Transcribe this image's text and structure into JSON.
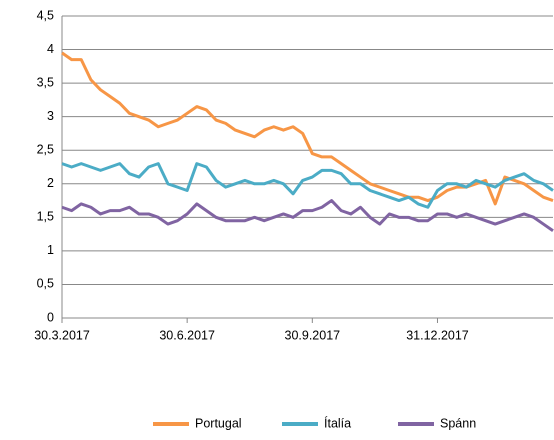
{
  "chart_data": {
    "type": "line",
    "categories": [
      "30.3.2017",
      null,
      null,
      null,
      null,
      null,
      null,
      null,
      null,
      null,
      null,
      null,
      null,
      "30.6.2017",
      null,
      null,
      null,
      null,
      null,
      null,
      null,
      null,
      null,
      null,
      null,
      null,
      "30.9.2017",
      null,
      null,
      null,
      null,
      null,
      null,
      null,
      null,
      null,
      null,
      null,
      null,
      "31.12.2017",
      null,
      null,
      null,
      null,
      null,
      null,
      null,
      null,
      null,
      null,
      null,
      null
    ],
    "series": [
      {
        "name": "Portugal",
        "color": "#f79646",
        "values": [
          3.95,
          3.85,
          3.85,
          3.55,
          3.4,
          3.3,
          3.2,
          3.05,
          3.0,
          2.95,
          2.85,
          2.9,
          2.95,
          3.05,
          3.15,
          3.1,
          2.95,
          2.9,
          2.8,
          2.75,
          2.7,
          2.8,
          2.85,
          2.8,
          2.85,
          2.75,
          2.45,
          2.4,
          2.4,
          2.3,
          2.2,
          2.1,
          2.0,
          1.95,
          1.9,
          1.85,
          1.8,
          1.8,
          1.75,
          1.8,
          1.9,
          1.95,
          1.95,
          2.0,
          2.05,
          1.7,
          2.1,
          2.05,
          2.0,
          1.9,
          1.8,
          1.75
        ]
      },
      {
        "name": "Ítalía",
        "color": "#4bacc6",
        "values": [
          2.3,
          2.25,
          2.3,
          2.25,
          2.2,
          2.25,
          2.3,
          2.15,
          2.1,
          2.25,
          2.3,
          2.0,
          1.95,
          1.9,
          2.3,
          2.25,
          2.05,
          1.95,
          2.0,
          2.05,
          2.0,
          2.0,
          2.05,
          2.0,
          1.85,
          2.05,
          2.1,
          2.2,
          2.2,
          2.15,
          2.0,
          2.0,
          1.9,
          1.85,
          1.8,
          1.75,
          1.8,
          1.7,
          1.65,
          1.9,
          2.0,
          2.0,
          1.95,
          2.05,
          2.0,
          1.95,
          2.05,
          2.1,
          2.15,
          2.05,
          2.0,
          1.9
        ]
      },
      {
        "name": "Spánn",
        "color": "#8064a2",
        "values": [
          1.65,
          1.6,
          1.7,
          1.65,
          1.55,
          1.6,
          1.6,
          1.65,
          1.55,
          1.55,
          1.5,
          1.4,
          1.45,
          1.55,
          1.7,
          1.6,
          1.5,
          1.45,
          1.45,
          1.45,
          1.5,
          1.45,
          1.5,
          1.55,
          1.5,
          1.6,
          1.6,
          1.65,
          1.75,
          1.6,
          1.55,
          1.65,
          1.5,
          1.4,
          1.55,
          1.5,
          1.5,
          1.45,
          1.45,
          1.55,
          1.55,
          1.5,
          1.55,
          1.5,
          1.45,
          1.4,
          1.45,
          1.5,
          1.55,
          1.5,
          1.4,
          1.3
        ]
      }
    ],
    "ylim": [
      0,
      4.5
    ],
    "yticks": [
      0,
      {
        "value": 0.5,
        "label": "0,5"
      },
      1,
      {
        "value": 1.5,
        "label": "1,5"
      },
      2,
      {
        "value": 2.5,
        "label": "2,5"
      },
      3,
      {
        "value": 3.5,
        "label": "3,5"
      },
      4,
      {
        "value": 4.5,
        "label": "4,5"
      }
    ],
    "grid": true,
    "legend": "bottom"
  }
}
